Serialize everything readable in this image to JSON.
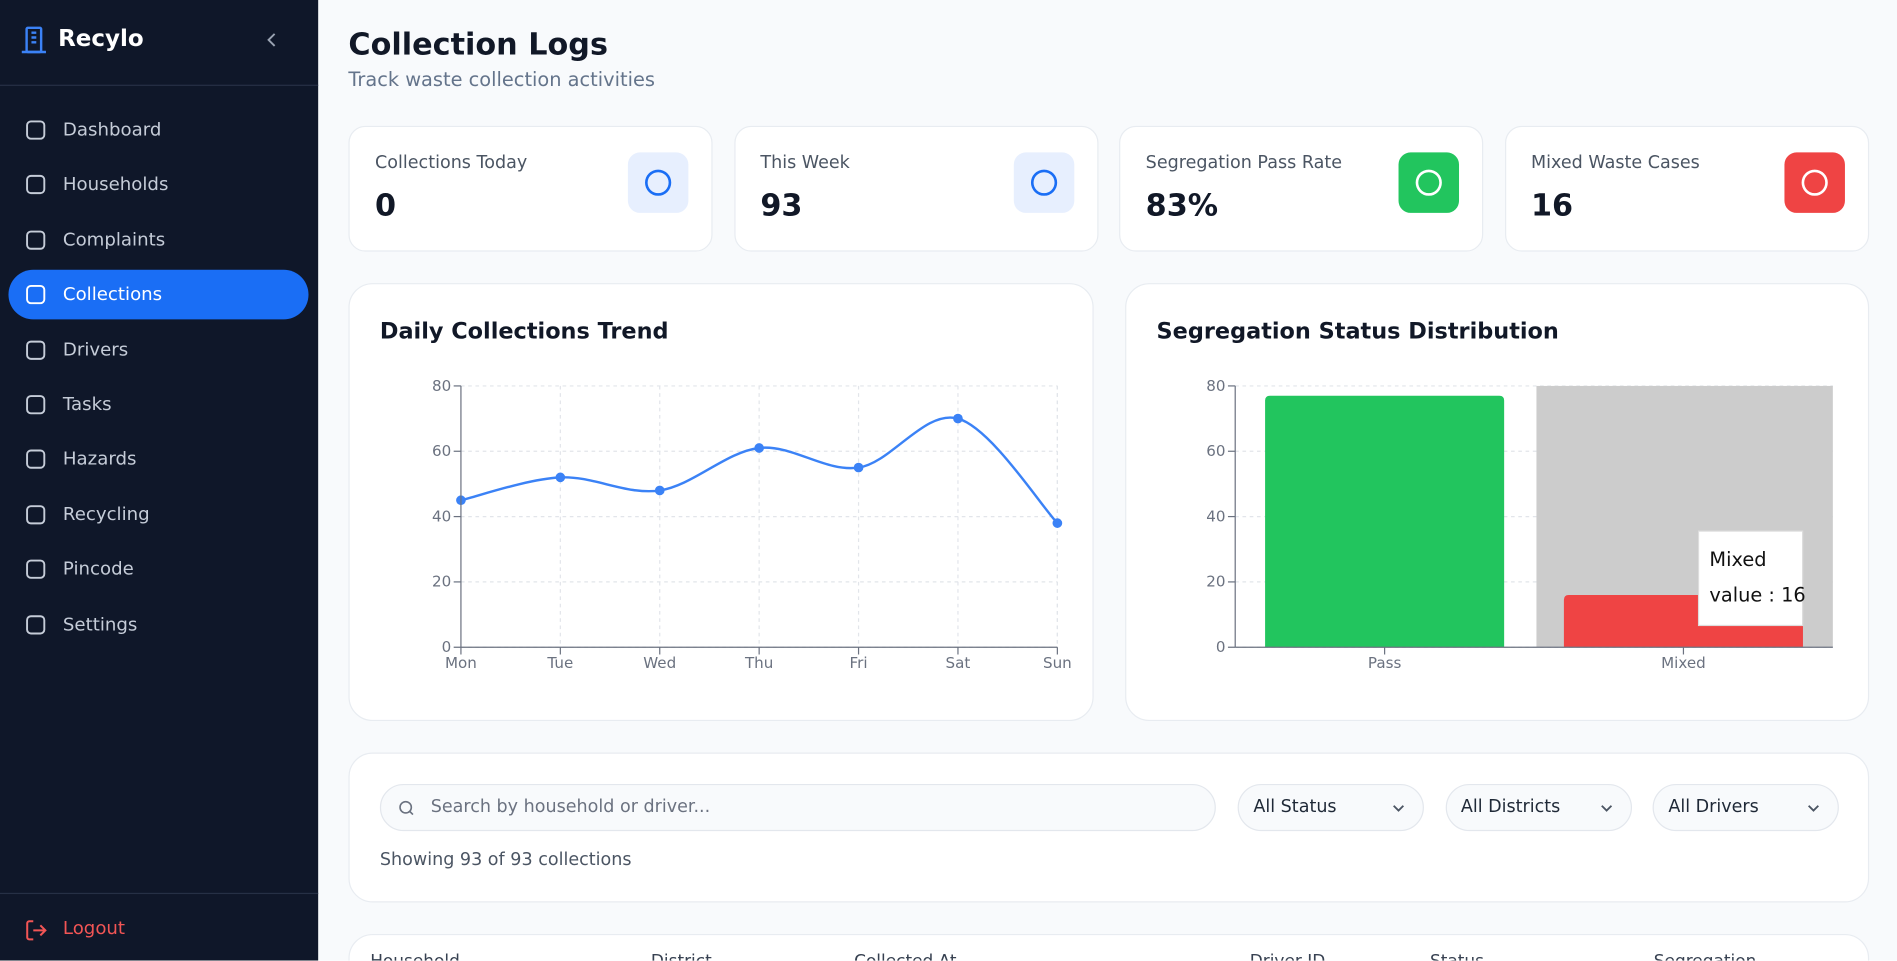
{
  "sidebar": {
    "brand": "Recylo",
    "nav": [
      "Dashboard",
      "Households",
      "Complaints",
      "Collections",
      "Drivers",
      "Tasks",
      "Hazards",
      "Recycling",
      "Pincode",
      "Settings"
    ],
    "active": 3,
    "logout": "Logout"
  },
  "header": {
    "title": "Collection Logs",
    "subtitle": "Track waste collection activities"
  },
  "stats": [
    {
      "label": "Collections Today",
      "value": "0",
      "icon_bg": "#e7effe",
      "icon_color": "#1a6ef5"
    },
    {
      "label": "This Week",
      "value": "93",
      "icon_bg": "#e7effe",
      "icon_color": "#1a6ef5"
    },
    {
      "label": "Segregation Pass Rate",
      "value": "83%",
      "icon_bg": "#22c55e",
      "icon_color": "#ffffff"
    },
    {
      "label": "Mixed Waste Cases",
      "value": "16",
      "icon_bg": "#ef4444",
      "icon_color": "#ffffff"
    }
  ],
  "charts": [
    {
      "type": "line",
      "title": "Daily Collections Trend",
      "categories": [
        "Mon",
        "Tue",
        "Wed",
        "Thu",
        "Fri",
        "Sat",
        "Sun"
      ],
      "values": [
        45,
        52,
        48,
        61,
        55,
        70,
        38
      ],
      "color": "#3b82f6",
      "ylim": [
        0,
        80
      ],
      "yticks": [
        0,
        20,
        40,
        60,
        80
      ],
      "grid": true
    },
    {
      "type": "bar",
      "title": "Segregation Status Distribution",
      "categories": [
        "Pass",
        "Mixed"
      ],
      "values": [
        77,
        16
      ],
      "colors": [
        "#22c55e",
        "#ef4444"
      ],
      "ylim": [
        0,
        80
      ],
      "yticks": [
        0,
        20,
        40,
        60,
        80
      ],
      "grid": true,
      "tooltip": {
        "title": "Mixed",
        "text": "value : 16"
      }
    }
  ],
  "filters": {
    "search_placeholder": "Search by household or driver...",
    "selects": [
      "All Status",
      "All Districts",
      "All Drivers"
    ],
    "summary": "Showing 93 of 93 collections"
  },
  "table": {
    "columns": [
      "Household",
      "District",
      "Collected At",
      "Driver ID",
      "Status",
      "Segregation"
    ]
  }
}
